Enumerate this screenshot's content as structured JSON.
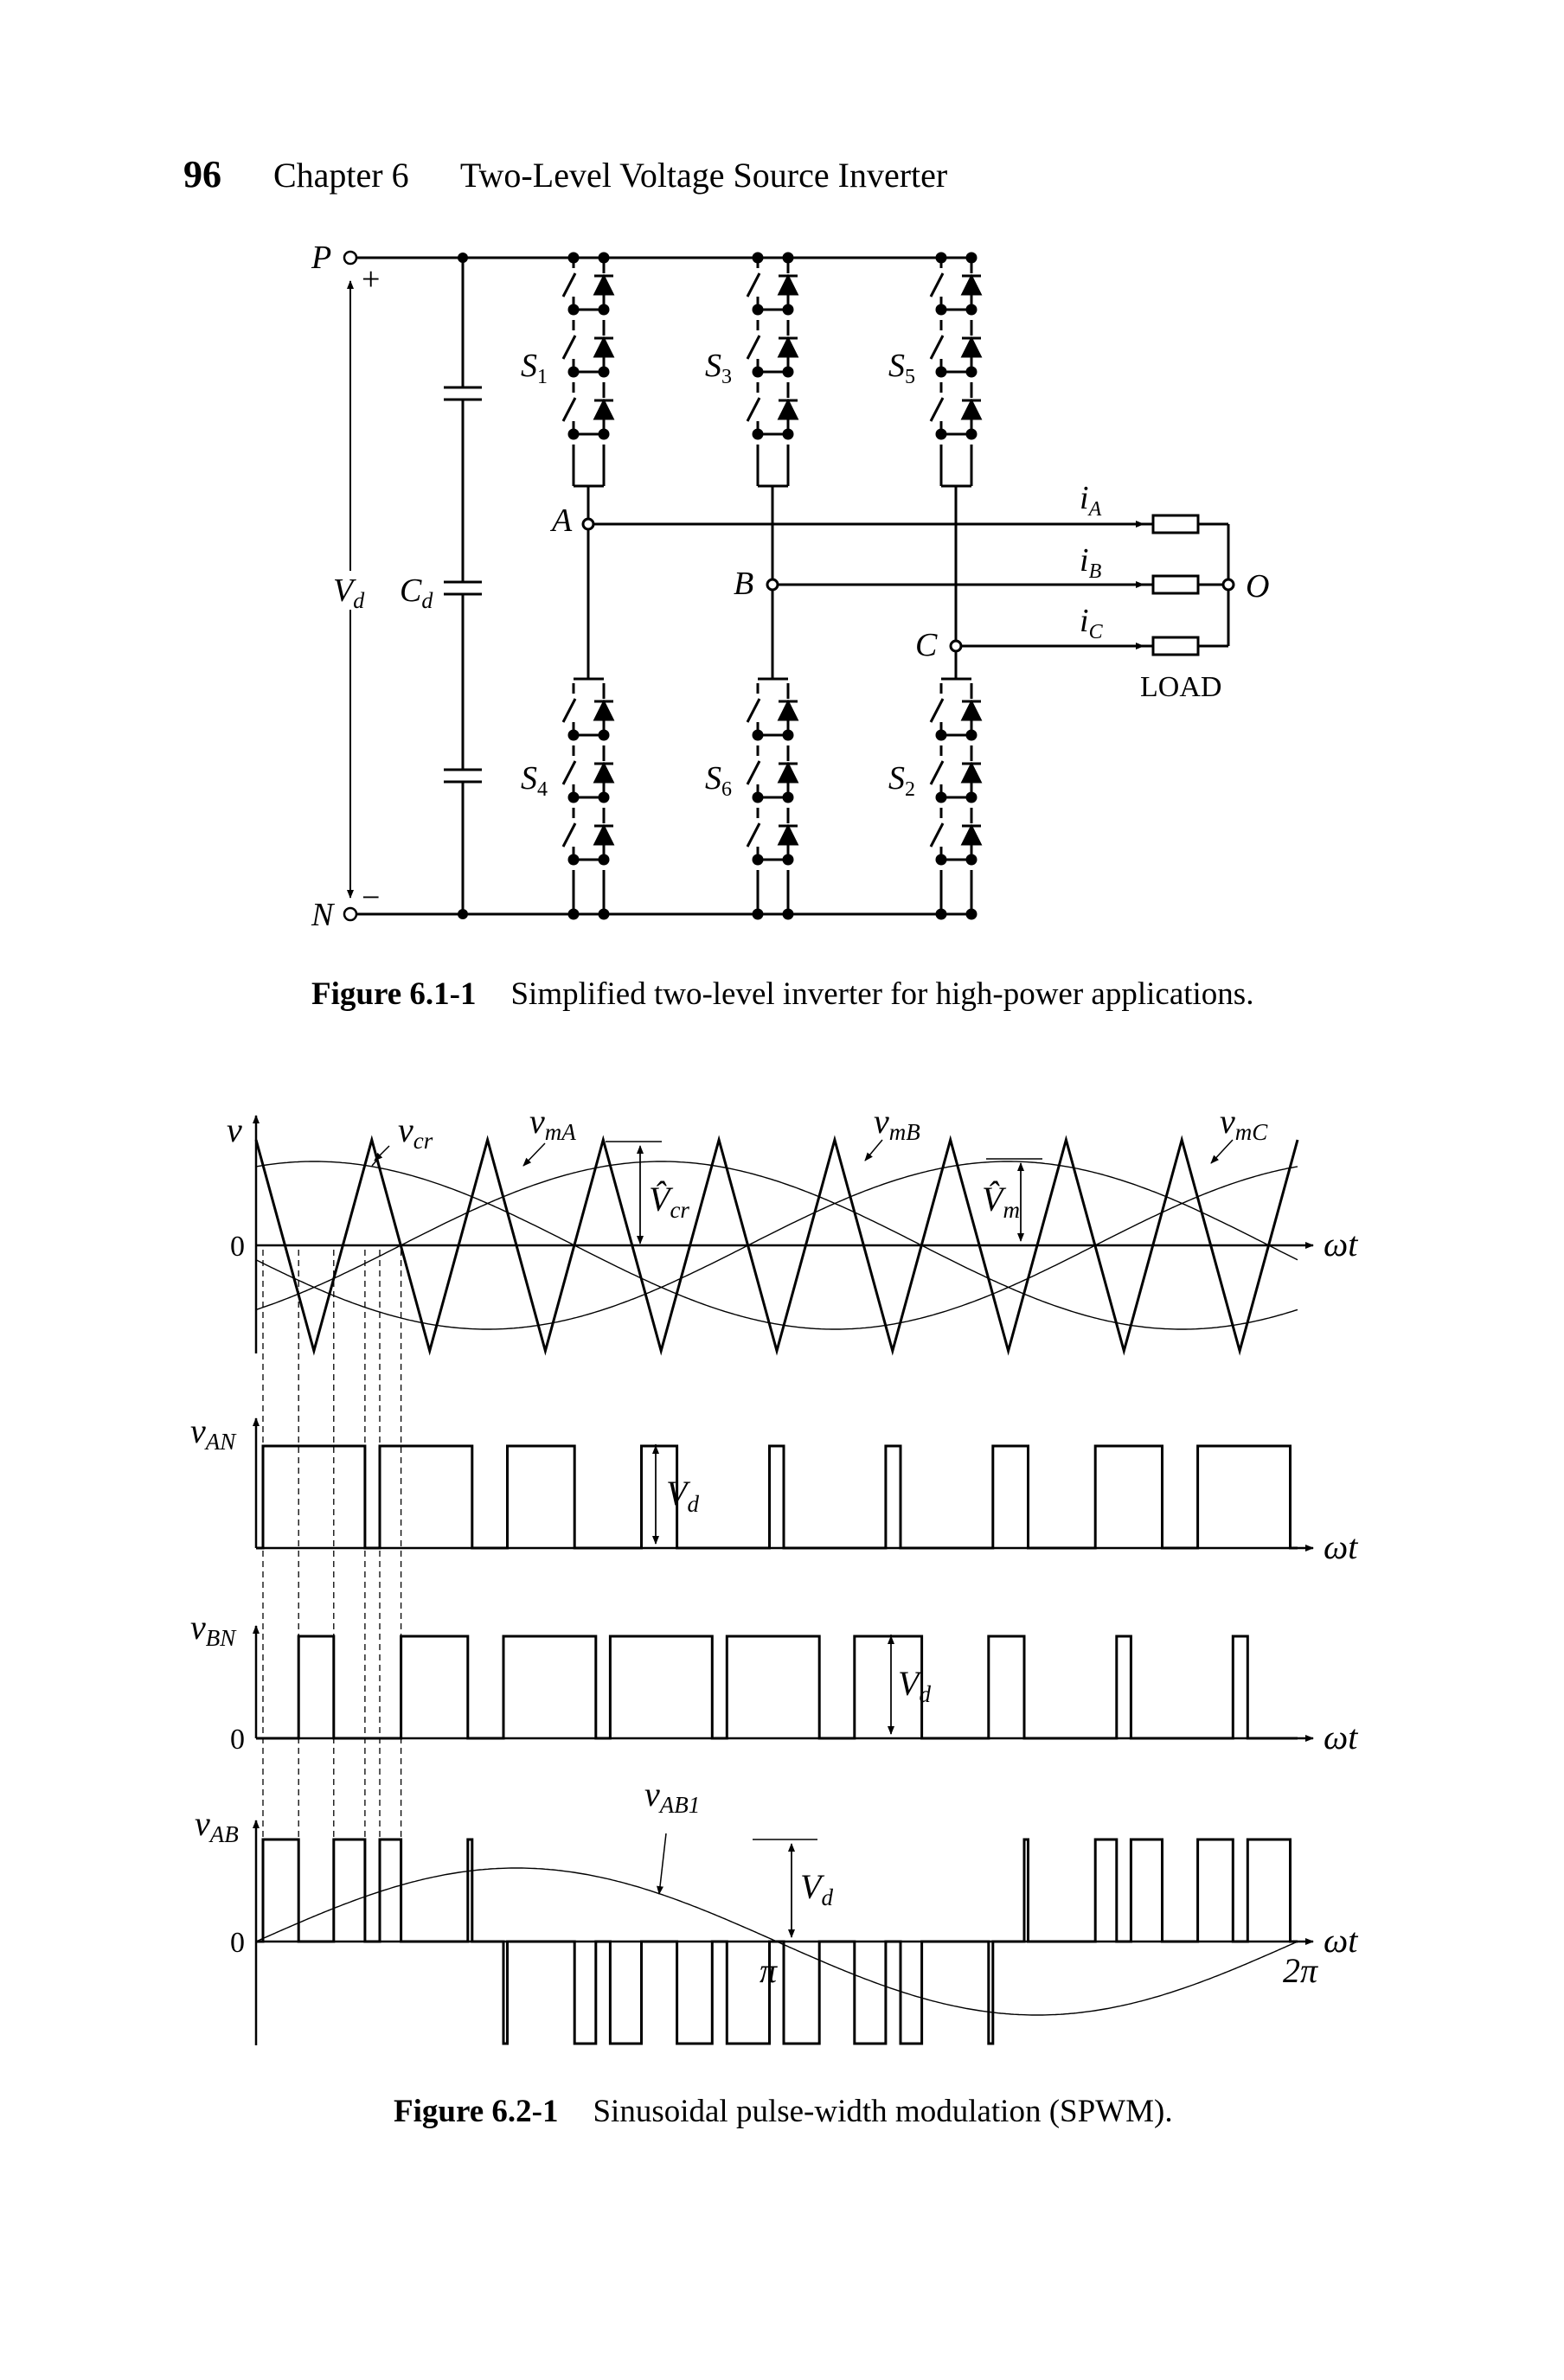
{
  "header": {
    "page_number": "96",
    "chapter": "Chapter 6",
    "title": "Two-Level Voltage Source Inverter"
  },
  "figure1": {
    "caption_label": "Figure 6.1-1",
    "caption_text": "Simplified two-level inverter for high-power applications.",
    "labels": {
      "p": "P",
      "n": "N",
      "plus": "+",
      "minus": "−",
      "vd": "V",
      "vd_sub": "d",
      "cd": "C",
      "cd_sub": "d",
      "s1": "S",
      "s1_sub": "1",
      "s3": "S",
      "s3_sub": "3",
      "s5": "S",
      "s5_sub": "5",
      "s4": "S",
      "s4_sub": "4",
      "s6": "S",
      "s6_sub": "6",
      "s2": "S",
      "s2_sub": "2",
      "a": "A",
      "b": "B",
      "c": "C",
      "ia": "i",
      "ia_sub": "A",
      "ib": "i",
      "ib_sub": "B",
      "ic": "i",
      "ic_sub": "C",
      "o": "O",
      "load": "LOAD"
    }
  },
  "figure2": {
    "caption_label": "Figure 6.2-1",
    "caption_text": "Sinusoidal pulse-width modulation (SPWM).",
    "labels": {
      "v": "v",
      "vcr": "v",
      "vcr_sub": "cr",
      "vma": "v",
      "vma_sub": "mA",
      "vmb": "v",
      "vmb_sub": "mB",
      "vmc": "v",
      "vmc_sub": "mC",
      "vcr_hat": "V̂",
      "vcr_hat_sub": "cr",
      "vm_hat": "V̂",
      "vm_hat_sub": "m",
      "zero": "0",
      "wt": "ωt",
      "van": "v",
      "van_sub": "AN",
      "vbn": "v",
      "vbn_sub": "BN",
      "vab": "v",
      "vab_sub": "AB",
      "vab1": "v",
      "vab1_sub": "AB1",
      "vd": "V",
      "vd_sub": "d",
      "pi": "π",
      "two_pi": "2π"
    }
  }
}
